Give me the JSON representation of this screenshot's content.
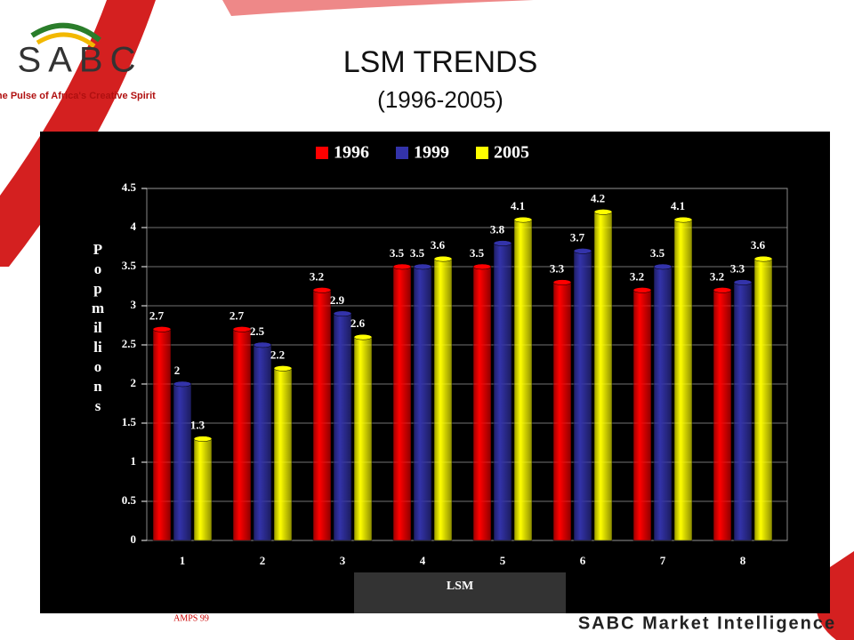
{
  "header": {
    "logo": "SABC",
    "tagline": "The Pulse of Africa's Creative Spirit"
  },
  "chart_data": {
    "type": "bar",
    "title": "LSM TRENDS",
    "subtitle": "(1996-2005)",
    "x_label": "LSM",
    "y_label": "Pop millions",
    "categories": [
      "1",
      "2",
      "3",
      "4",
      "5",
      "6",
      "7",
      "8"
    ],
    "series": [
      {
        "name": "1996",
        "color": "#ff0000",
        "values": [
          2.7,
          2.7,
          3.2,
          3.5,
          3.5,
          3.3,
          3.2,
          3.2
        ]
      },
      {
        "name": "1999",
        "color": "#3333aa",
        "values": [
          2,
          2.5,
          2.9,
          3.5,
          3.8,
          3.7,
          3.5,
          3.3
        ]
      },
      {
        "name": "2005",
        "color": "#ffff00",
        "values": [
          1.3,
          2.2,
          2.6,
          3.6,
          4.1,
          4.2,
          4.1,
          3.6
        ]
      }
    ],
    "ylim": [
      0,
      4.5
    ],
    "yticks": [
      0,
      0.5,
      1,
      1.5,
      2,
      2.5,
      3,
      3.5,
      4,
      4.5
    ],
    "grid": true,
    "legend": "top"
  },
  "footer": {
    "source": "AMPS 99",
    "brand": "SABC Market Intelligence"
  }
}
